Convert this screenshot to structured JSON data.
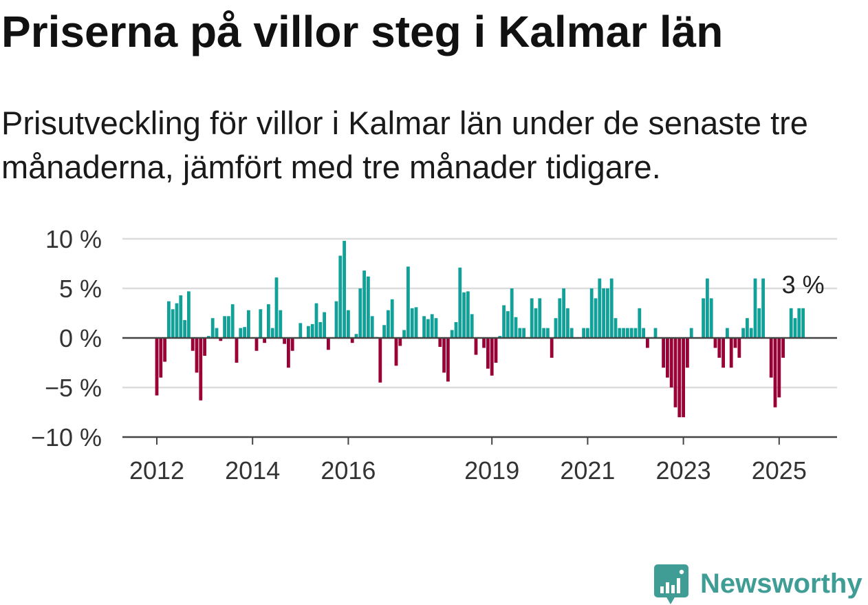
{
  "title": "Priserna på villor steg i Kalmar län",
  "subtitle": "Prisutveckling för villor i Kalmar län under de senaste tre månaderna, jämfört med tre månader tidigare.",
  "brand": {
    "name": "Newsworthy",
    "icon": "newsworthy-logo-icon",
    "color": "#3f9d96"
  },
  "chart_data": {
    "type": "bar",
    "x": [
      "2012-01",
      "2012-02",
      "2012-03",
      "2012-04",
      "2012-05",
      "2012-06",
      "2012-07",
      "2012-08",
      "2012-09",
      "2012-10",
      "2012-11",
      "2012-12",
      "2013-01",
      "2013-02",
      "2013-03",
      "2013-04",
      "2013-05",
      "2013-06",
      "2013-07",
      "2013-08",
      "2013-09",
      "2013-10",
      "2013-11",
      "2013-12",
      "2014-01",
      "2014-02",
      "2014-03",
      "2014-04",
      "2014-05",
      "2014-06",
      "2014-07",
      "2014-08",
      "2014-09",
      "2014-10",
      "2014-11",
      "2014-12",
      "2015-01",
      "2015-02",
      "2015-03",
      "2015-04",
      "2015-05",
      "2015-06",
      "2015-07",
      "2015-08",
      "2015-09",
      "2015-10",
      "2015-11",
      "2015-12",
      "2016-01",
      "2016-02",
      "2016-03",
      "2016-04",
      "2016-05",
      "2016-06",
      "2016-07",
      "2016-08",
      "2016-09",
      "2016-10",
      "2016-11",
      "2016-12",
      "2017-01",
      "2017-02",
      "2017-03",
      "2017-04",
      "2017-05",
      "2017-06",
      "2017-07",
      "2017-08",
      "2017-09",
      "2017-10",
      "2017-11",
      "2017-12",
      "2018-01",
      "2018-02",
      "2018-03",
      "2018-04",
      "2018-05",
      "2018-06",
      "2018-07",
      "2018-08",
      "2018-09",
      "2018-10",
      "2018-11",
      "2018-12",
      "2019-01",
      "2019-02",
      "2019-03",
      "2019-04",
      "2019-05",
      "2019-06",
      "2019-07",
      "2019-08",
      "2019-09",
      "2019-10",
      "2019-11",
      "2019-12",
      "2020-01",
      "2020-02",
      "2020-03",
      "2020-04",
      "2020-05",
      "2020-06",
      "2020-07",
      "2020-08",
      "2020-09",
      "2020-10",
      "2020-11",
      "2020-12",
      "2021-01",
      "2021-02",
      "2021-03",
      "2021-04",
      "2021-05",
      "2021-06",
      "2021-07",
      "2021-08",
      "2021-09",
      "2021-10",
      "2021-11",
      "2021-12",
      "2022-01",
      "2022-02",
      "2022-03",
      "2022-04",
      "2022-05",
      "2022-06",
      "2022-07",
      "2022-08",
      "2022-09",
      "2022-10",
      "2022-11",
      "2022-12",
      "2023-01",
      "2023-02",
      "2023-03",
      "2023-04",
      "2023-05",
      "2023-06",
      "2023-07",
      "2023-08",
      "2023-09",
      "2023-10",
      "2023-11",
      "2023-12",
      "2024-01",
      "2024-02",
      "2024-03",
      "2024-04",
      "2024-05",
      "2024-06",
      "2024-07",
      "2024-08",
      "2024-09",
      "2024-10",
      "2024-11",
      "2024-12",
      "2025-01",
      "2025-02",
      "2025-03",
      "2025-04",
      "2025-05",
      "2025-06",
      "2025-07"
    ],
    "values": [
      -5.8,
      -4.0,
      -2.4,
      3.7,
      2.9,
      3.5,
      4.3,
      1.8,
      4.7,
      -1.3,
      -3.5,
      -6.3,
      -1.8,
      0.2,
      2.0,
      1.0,
      -0.3,
      2.2,
      2.2,
      3.4,
      -2.5,
      1.0,
      1.1,
      2.8,
      0,
      -1.3,
      2.9,
      -0.5,
      3.4,
      1.0,
      6.1,
      2.8,
      -0.6,
      -3.0,
      -1.3,
      0,
      1.5,
      0,
      1.2,
      1.4,
      3.5,
      1.6,
      2.6,
      -1.2,
      0,
      3.7,
      8.3,
      9.8,
      2.8,
      -0.5,
      0.4,
      5.0,
      6.8,
      6.2,
      2.2,
      0.1,
      -4.5,
      1.3,
      2.8,
      3.9,
      -2.8,
      -0.8,
      0.8,
      7.2,
      3.0,
      3.1,
      0,
      2.2,
      1.9,
      2.4,
      2.0,
      -0.9,
      -3.5,
      -4.4,
      0.8,
      1.6,
      7.1,
      4.6,
      4.7,
      2.4,
      -1.7,
      0,
      -1.0,
      -3.1,
      -3.8,
      -2.5,
      0.2,
      3.3,
      2.7,
      5.0,
      2.1,
      1.0,
      1.0,
      0,
      4.0,
      3.0,
      4.0,
      1.0,
      1.0,
      -2.0,
      2.0,
      4.0,
      5.0,
      3.0,
      1.0,
      0,
      0,
      1.0,
      1.0,
      5.0,
      4.0,
      6.0,
      5.0,
      5.0,
      6.0,
      2.0,
      1.0,
      1.0,
      1.0,
      1.0,
      1.0,
      3.0,
      1.0,
      -1.0,
      0,
      1.0,
      0,
      -3.0,
      -4.0,
      -5.0,
      -7.0,
      -8.0,
      -8.0,
      -3.0,
      1.0,
      0,
      0,
      4.0,
      6.0,
      4.0,
      -1.0,
      -2.0,
      -3.0,
      1.0,
      -3.0,
      -1.0,
      -2.0,
      1.0,
      2.0,
      1.0,
      6.0,
      3.0,
      6.0,
      0,
      -4.0,
      -7.0,
      -6.0,
      -2.0,
      0,
      3.0,
      2.0,
      3.0,
      3.0
    ],
    "ylim": [
      -10,
      10
    ],
    "y_ticks": [
      10,
      5,
      0,
      -5,
      -10
    ],
    "y_tick_labels": [
      "10 %",
      "5 %",
      "0 %",
      "−5 %",
      "−10 %"
    ],
    "x_ticks": [
      "2012-01",
      "2014-01",
      "2016-01",
      "2019-01",
      "2021-01",
      "2023-01",
      "2025-01"
    ],
    "x_tick_labels": [
      "2012",
      "2014",
      "2016",
      "2019",
      "2021",
      "2023",
      "2025"
    ],
    "grid": true,
    "colors": {
      "positive": "#12a199",
      "negative": "#990036",
      "axis": "#444444",
      "grid": "#dcdcdc",
      "tick_text": "#333333"
    },
    "annotations": [
      {
        "x": "2025-07",
        "y": 3,
        "text": "3 %"
      }
    ]
  }
}
